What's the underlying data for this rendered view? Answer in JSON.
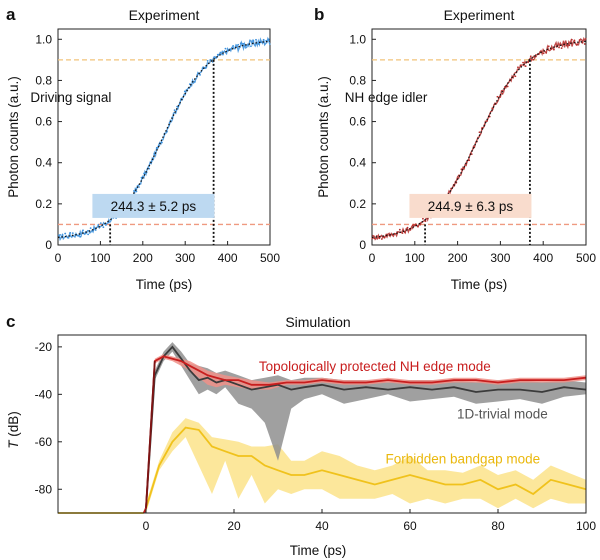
{
  "chart_data": [
    {
      "panel": "a",
      "type": "line",
      "title": "Experiment",
      "xlabel": "Time (ps)",
      "ylabel": "Photon counts (a.u.)",
      "xlim": [
        0,
        500
      ],
      "ylim": [
        0,
        1.05
      ],
      "x_ticks": [
        "0",
        "100",
        "200",
        "300",
        "400",
        "500"
      ],
      "y_ticks": [
        "0",
        "0.2",
        "0.4",
        "0.6",
        "0.8",
        "1.0"
      ],
      "curve": {
        "color": "#3a8fdc",
        "fit_color": "#111111",
        "t10": 123,
        "t90": 367,
        "noise": 0.012
      },
      "thresholds": [
        0.1,
        0.9
      ],
      "threshold_colors": [
        "#ef9a80",
        "#f2c37a"
      ],
      "annotations": [
        {
          "id": "signal-label",
          "text": "Driving signal",
          "x": 100,
          "y": 0.72
        },
        {
          "id": "rise-time",
          "text": "244.3 ± 5.2 ps",
          "x": 225,
          "y": 0.19,
          "box": "#bdd9f1"
        }
      ],
      "markers": [
        {
          "x": 123,
          "y": 0.1
        },
        {
          "x": 367,
          "y": 0.9
        }
      ]
    },
    {
      "panel": "b",
      "type": "line",
      "title": "Experiment",
      "xlabel": "Time (ps)",
      "ylabel": "Photon counts (a.u.)",
      "xlim": [
        0,
        500
      ],
      "ylim": [
        0,
        1.05
      ],
      "x_ticks": [
        "0",
        "100",
        "200",
        "300",
        "400",
        "500"
      ],
      "y_ticks": [
        "0",
        "0.2",
        "0.4",
        "0.6",
        "0.8",
        "1.0"
      ],
      "curve": {
        "color": "#b52d2b",
        "fit_color": "#111111",
        "t10": 124,
        "t90": 369,
        "noise": 0.012
      },
      "thresholds": [
        0.1,
        0.9
      ],
      "threshold_colors": [
        "#ef9a80",
        "#f2c37a"
      ],
      "annotations": [
        {
          "id": "idler-label",
          "text": "NH edge idler",
          "x": 100,
          "y": 0.72
        },
        {
          "id": "rise-time",
          "text": "244.9 ± 6.3 ps",
          "x": 230,
          "y": 0.19,
          "box": "#f9dccd"
        }
      ],
      "markers": [
        {
          "x": 124,
          "y": 0.1
        },
        {
          "x": 369,
          "y": 0.9
        }
      ]
    },
    {
      "panel": "c",
      "type": "area",
      "title": "Simulation",
      "xlabel": "Time (ps)",
      "ylabel": "T (dB)",
      "xlim": [
        -20,
        100
      ],
      "ylim": [
        -90,
        -15
      ],
      "x_ticks": [
        "0",
        "20",
        "40",
        "60",
        "80",
        "100"
      ],
      "x_tick_values": [
        0,
        20,
        40,
        60,
        80,
        100
      ],
      "y_ticks": [
        "-20",
        "-40",
        "-60",
        "-80"
      ],
      "y_tick_values": [
        -20,
        -40,
        -60,
        -80
      ],
      "series": [
        {
          "name": "Forbidden bandgap mode",
          "color": "#f0c21c",
          "band_color": "#fbe38a",
          "x": [
            -20,
            -0.5,
            0,
            3,
            6,
            9,
            12,
            15,
            18,
            21,
            24,
            27,
            30,
            33,
            36,
            40,
            44,
            48,
            52,
            56,
            60,
            64,
            68,
            72,
            76,
            80,
            84,
            88,
            92,
            96,
            100
          ],
          "y": [
            -90,
            -90,
            -88,
            -70,
            -60,
            -54,
            -55,
            -62,
            -64,
            -66,
            -66,
            -70,
            -72,
            -74,
            -74,
            -72,
            -74,
            -76,
            -78,
            -76,
            -74,
            -76,
            -78,
            -78,
            -76,
            -80,
            -78,
            -82,
            -76,
            -78,
            -80
          ],
          "upper": [
            -90,
            -90,
            -86,
            -68,
            -56,
            -50,
            -52,
            -58,
            -59,
            -60,
            -62,
            -62,
            -61,
            -68,
            -68,
            -64,
            -66,
            -70,
            -72,
            -70,
            -66,
            -72,
            -72,
            -73,
            -70,
            -74,
            -72,
            -76,
            -70,
            -73,
            -76
          ],
          "lower": [
            -90,
            -90,
            -90,
            -72,
            -64,
            -58,
            -70,
            -82,
            -68,
            -84,
            -74,
            -86,
            -80,
            -82,
            -80,
            -80,
            -84,
            -84,
            -84,
            -82,
            -86,
            -84,
            -86,
            -84,
            -84,
            -88,
            -84,
            -88,
            -84,
            -86,
            -86
          ]
        },
        {
          "name": "1D-trivial mode",
          "color": "#3b3b3b",
          "band_color": "#8f8f8f",
          "x": [
            -20,
            -0.5,
            0,
            2,
            4,
            6,
            8,
            10,
            12,
            14,
            16,
            18,
            21,
            24,
            27,
            30,
            33,
            36,
            40,
            45,
            50,
            55,
            60,
            65,
            70,
            75,
            80,
            85,
            90,
            95,
            100
          ],
          "y": [
            -90,
            -90,
            -88,
            -32,
            -24,
            -20,
            -25,
            -30,
            -34,
            -33,
            -35,
            -34,
            -36,
            -38,
            -37,
            -36,
            -38,
            -37,
            -36,
            -38,
            -37,
            -38,
            -37,
            -38,
            -37,
            -39,
            -38,
            -38,
            -39,
            -37,
            -38
          ],
          "upper": [
            -90,
            -90,
            -86,
            -30,
            -22,
            -18,
            -22,
            -27,
            -28,
            -29,
            -31,
            -30,
            -32,
            -34,
            -33,
            -32,
            -34,
            -33,
            -33,
            -34,
            -34,
            -35,
            -34,
            -34,
            -34,
            -35,
            -34,
            -34,
            -35,
            -34,
            -35
          ],
          "lower": [
            -90,
            -90,
            -90,
            -34,
            -26,
            -22,
            -28,
            -34,
            -40,
            -38,
            -40,
            -37,
            -44,
            -46,
            -52,
            -68,
            -46,
            -42,
            -40,
            -44,
            -42,
            -40,
            -43,
            -42,
            -41,
            -44,
            -43,
            -42,
            -44,
            -41,
            -40
          ]
        },
        {
          "name": "Topologically protected NH edge mode",
          "color": "#c81e1e",
          "band_color": "#f09088",
          "x": [
            -20,
            -0.5,
            0,
            2,
            4,
            6,
            8,
            10,
            12,
            14,
            16,
            18,
            21,
            24,
            28,
            32,
            36,
            40,
            45,
            50,
            55,
            60,
            65,
            70,
            75,
            80,
            85,
            90,
            95,
            100
          ],
          "y": [
            -90,
            -90,
            -88,
            -26,
            -24,
            -25,
            -26,
            -28,
            -30,
            -32,
            -33,
            -34,
            -34,
            -36,
            -36,
            -35,
            -35,
            -34,
            -35,
            -35,
            -34,
            -35,
            -35,
            -34,
            -34,
            -35,
            -34,
            -34,
            -34,
            -33
          ],
          "upper": [
            -90,
            -90,
            -86,
            -25,
            -23,
            -24,
            -25,
            -26,
            -28,
            -30,
            -31,
            -32,
            -33,
            -34,
            -35,
            -34,
            -34,
            -33,
            -34,
            -34,
            -33,
            -34,
            -34,
            -33,
            -33,
            -34,
            -33,
            -33,
            -33,
            -32
          ],
          "lower": [
            -90,
            -90,
            -90,
            -27,
            -25,
            -26,
            -28,
            -30,
            -33,
            -36,
            -37,
            -36,
            -37,
            -38,
            -38,
            -36,
            -36,
            -35,
            -36,
            -36,
            -35,
            -36,
            -36,
            -35,
            -35,
            -36,
            -35,
            -35,
            -35,
            -34
          ]
        }
      ],
      "baseline_color": "#7a1414",
      "annotations": [
        {
          "id": "label-nh-edge",
          "text": "Topologically protected NH edge mode",
          "color": "#c81e1e",
          "x": 52,
          "y": -28
        },
        {
          "id": "label-1d-trivial",
          "text": "1D-trivial mode",
          "color": "#555555",
          "x": 81,
          "y": -48
        },
        {
          "id": "label-bandgap",
          "text": "Forbidden bandgap mode",
          "color": "#eab80d",
          "x": 72,
          "y": -67
        }
      ]
    }
  ]
}
